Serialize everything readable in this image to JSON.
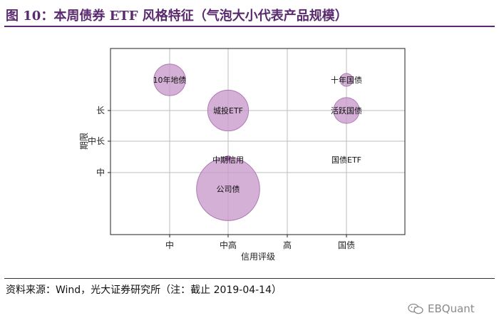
{
  "header": {
    "title": "图 10：本周债券 ETF 风格特征（气泡大小代表产品规模）"
  },
  "footer": {
    "source": "资料来源：Wind，光大证券研究所（注：截止 2019-04-14）",
    "watermark": "EBQuant",
    "watermark_icon": "wechat-icon"
  },
  "chart_data": {
    "type": "scatter",
    "xlabel": "信用评级",
    "ylabel": "期限",
    "x_categories": [
      "中",
      "中高",
      "高",
      "国债"
    ],
    "y_categories": [
      "中",
      "中长",
      "长"
    ],
    "grid": true,
    "bubble_color": "#c99acb",
    "bubble_edge": "#b07ab8",
    "points": [
      {
        "label": "10年地债",
        "x": "中",
        "y": "长+",
        "size": 3
      },
      {
        "label": "城投ETF",
        "x": "中高",
        "y": "长",
        "size": 5
      },
      {
        "label": "中期信用",
        "x": "中高",
        "y": "中+",
        "size": 0.05
      },
      {
        "label": "公司债",
        "x": "中高",
        "y": "中-",
        "size": 12
      },
      {
        "label": "十年国债",
        "x": "国债",
        "y": "长+",
        "size": 0.5
      },
      {
        "label": "活跃国债",
        "x": "国债",
        "y": "长",
        "size": 2
      },
      {
        "label": "国债ETF",
        "x": "国债",
        "y": "中+",
        "size": 0
      }
    ]
  }
}
